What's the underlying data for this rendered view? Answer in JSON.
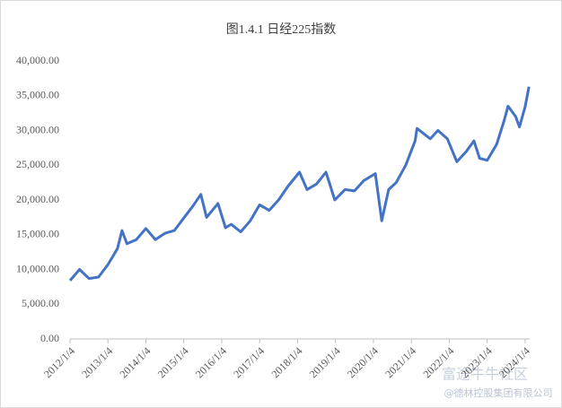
{
  "chart_data": {
    "type": "line",
    "title": "图1.4.1 日经225指数",
    "x": [
      2012.0,
      2012.25,
      2012.5,
      2012.75,
      2013.0,
      2013.25,
      2013.37,
      2013.5,
      2013.75,
      2014.0,
      2014.25,
      2014.5,
      2014.75,
      2015.0,
      2015.25,
      2015.45,
      2015.6,
      2015.9,
      2016.1,
      2016.25,
      2016.5,
      2016.75,
      2017.0,
      2017.25,
      2017.5,
      2017.75,
      2018.05,
      2018.25,
      2018.5,
      2018.75,
      2018.98,
      2019.25,
      2019.5,
      2019.75,
      2020.05,
      2020.22,
      2020.4,
      2020.6,
      2020.85,
      2021.1,
      2021.15,
      2021.5,
      2021.7,
      2021.95,
      2022.2,
      2022.45,
      2022.65,
      2022.8,
      2023.0,
      2023.25,
      2023.45,
      2023.55,
      2023.75,
      2023.85,
      2024.0,
      2024.1
    ],
    "series": [
      {
        "name": "日经225",
        "color": "#4472c4",
        "values": [
          8400,
          10000,
          8700,
          8900,
          10700,
          13000,
          15600,
          13700,
          14300,
          15900,
          14300,
          15200,
          15600,
          17400,
          19200,
          20800,
          17500,
          19500,
          16000,
          16500,
          15400,
          17000,
          19300,
          18500,
          20000,
          22000,
          24000,
          21500,
          22300,
          24000,
          20000,
          21500,
          21300,
          22800,
          23800,
          17000,
          21500,
          22500,
          25000,
          28500,
          30300,
          28800,
          30000,
          28800,
          25500,
          27000,
          28500,
          26000,
          25700,
          28000,
          31500,
          33500,
          32000,
          30500,
          33400,
          36300
        ]
      }
    ],
    "xlim": [
      2012.0,
      2024.12
    ],
    "xticks": [
      {
        "value": 2012.0,
        "label": "2012/1/4"
      },
      {
        "value": 2013.0,
        "label": "2013/1/4"
      },
      {
        "value": 2014.0,
        "label": "2014/1/4"
      },
      {
        "value": 2015.0,
        "label": "2015/1/4"
      },
      {
        "value": 2016.0,
        "label": "2016/1/4"
      },
      {
        "value": 2017.0,
        "label": "2017/1/4"
      },
      {
        "value": 2018.0,
        "label": "2018/1/4"
      },
      {
        "value": 2019.0,
        "label": "2019/1/4"
      },
      {
        "value": 2020.0,
        "label": "2020/1/4"
      },
      {
        "value": 2021.0,
        "label": "2021/1/4"
      },
      {
        "value": 2022.0,
        "label": "2022/1/4"
      },
      {
        "value": 2023.0,
        "label": "2023/1/4"
      },
      {
        "value": 2024.0,
        "label": "2024/1/4"
      }
    ],
    "ylim": [
      0,
      40000
    ],
    "yticks": [
      {
        "value": 0,
        "label": "0.00"
      },
      {
        "value": 5000,
        "label": "5,000.00"
      },
      {
        "value": 10000,
        "label": "10,000.00"
      },
      {
        "value": 15000,
        "label": "15,000.00"
      },
      {
        "value": 20000,
        "label": "20,000.00"
      },
      {
        "value": 25000,
        "label": "25,000.00"
      },
      {
        "value": 30000,
        "label": "30,000.00"
      },
      {
        "value": 35000,
        "label": "35,000.00"
      },
      {
        "value": 40000,
        "label": "40,000.00"
      }
    ],
    "grid": false
  },
  "watermark": [
    "富途牛牛社区",
    "@德林控股集团有限公司"
  ]
}
